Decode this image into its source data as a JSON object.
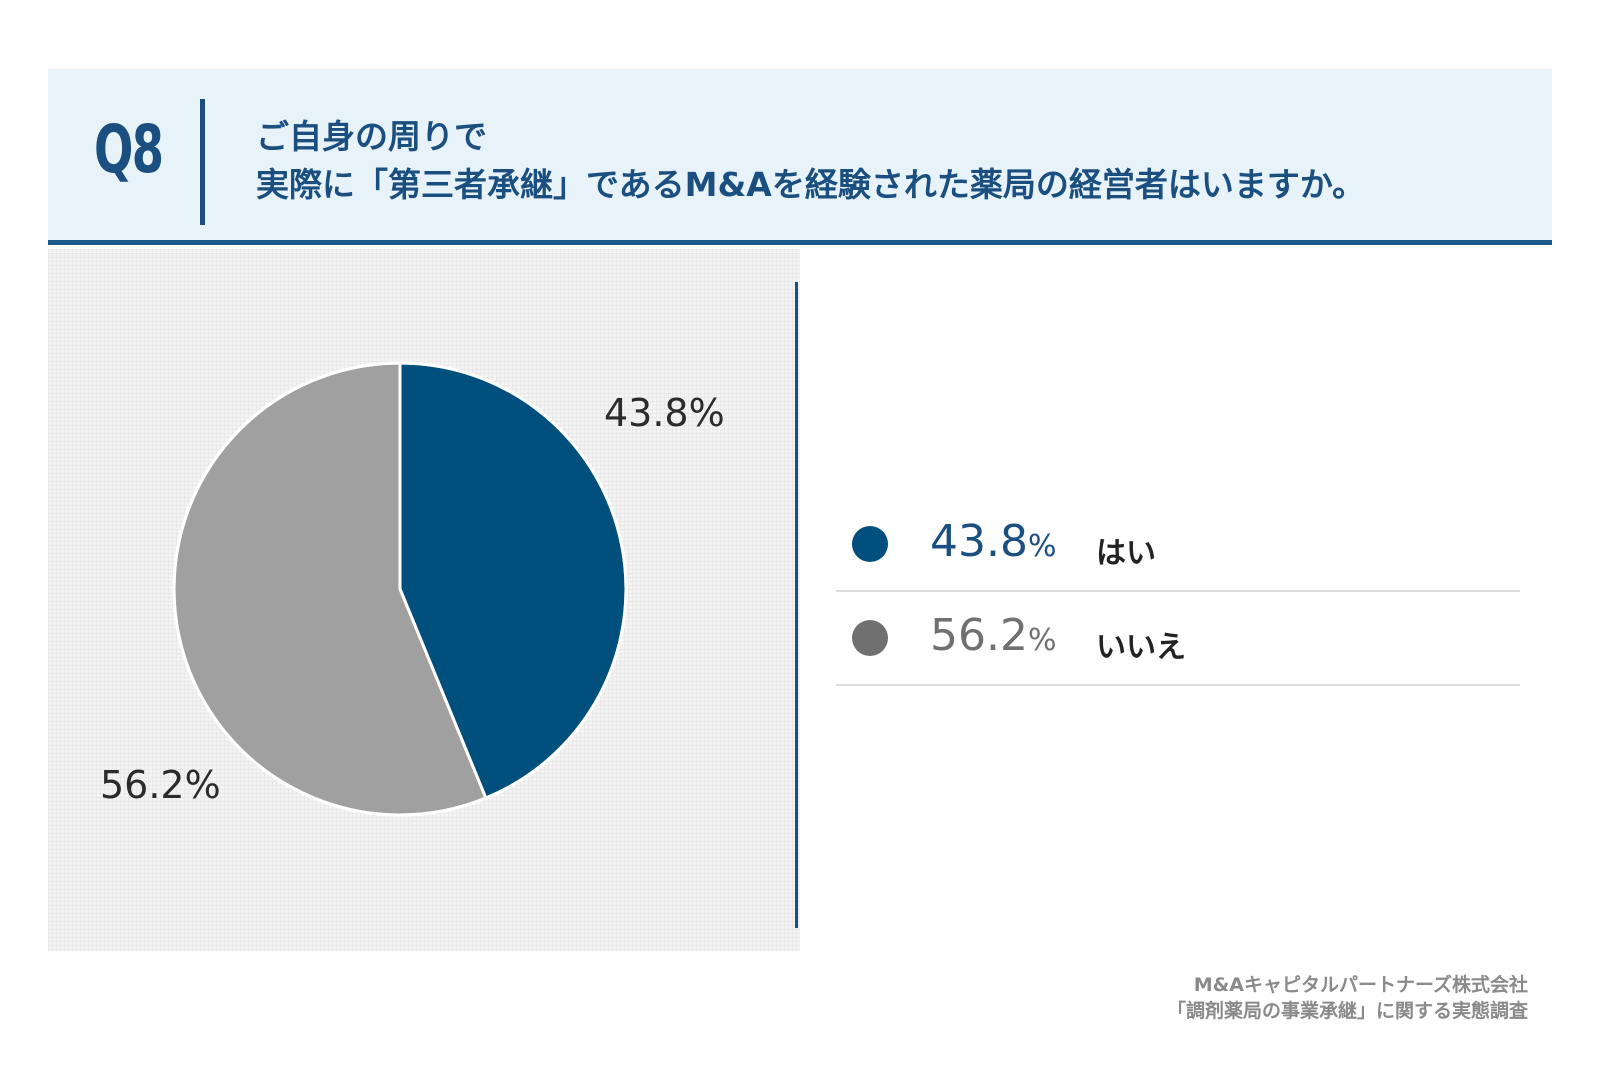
{
  "header": {
    "question": "Q8",
    "title_line1": "ご自身の周りで",
    "title_line2": "実際に「第三者承継」であるM&Aを経験された薬局の経営者はいますか。"
  },
  "chart_data": {
    "type": "pie",
    "categories": [
      "はい",
      "いいえ"
    ],
    "values": [
      43.8,
      56.2
    ],
    "labels": [
      "43.8%",
      "56.2%"
    ],
    "colors": [
      "#004f7c",
      "#a0a0a0"
    ],
    "legend_colors": [
      "#004f7c",
      "#707070"
    ],
    "start_angle_deg": 0,
    "direction": "clockwise"
  },
  "legend": {
    "items": [
      {
        "value": "43.8",
        "unit": "%",
        "name": "はい",
        "text_color": "#1b4f80"
      },
      {
        "value": "56.2",
        "unit": "%",
        "name": "いいえ",
        "text_color": "#707070"
      }
    ]
  },
  "footer": {
    "company": "M&Aキャピタルパートナーズ株式会社",
    "survey": "「調剤薬局の事業承継」に関する実態調査"
  }
}
